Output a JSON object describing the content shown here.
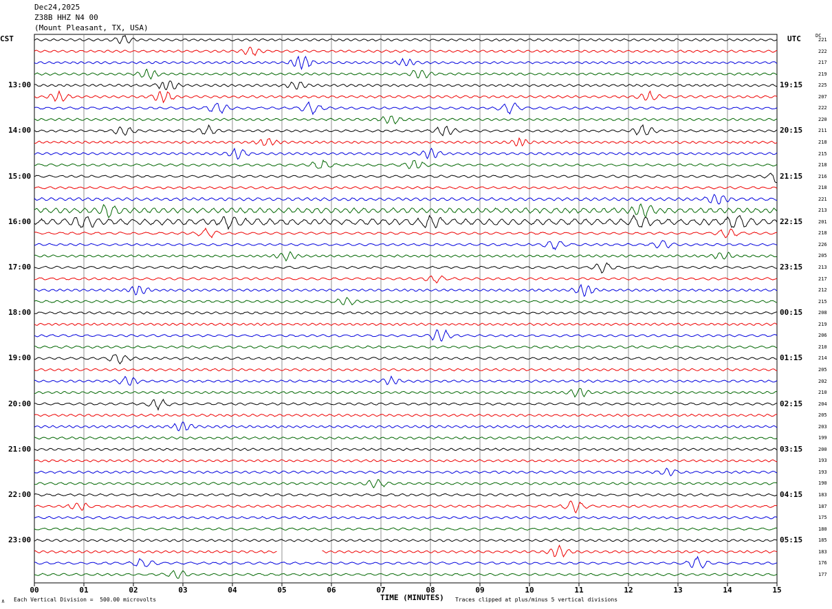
{
  "header": {
    "date": "Dec24,2025",
    "station": "Z38B HHZ N4 00",
    "location": "(Mount Pleasant, TX, USA)"
  },
  "left_tz": "CST",
  "right_tz": "UTC",
  "dc_label": "DC",
  "footer": {
    "scale_note": "Each Vertical Division =  500.00 microvolts",
    "clip_note": "Traces clipped at plus/minus 5 vertical divisions",
    "corner_mark": "∧"
  },
  "colors": [
    "#000000",
    "#ee0000",
    "#0000dd",
    "#006600"
  ],
  "chart_data": {
    "type": "line",
    "title": "",
    "xlabel": "TIME (MINUTES)",
    "xlim": [
      0,
      15
    ],
    "x_ticks": [
      "00",
      "01",
      "02",
      "03",
      "04",
      "05",
      "06",
      "07",
      "08",
      "09",
      "10",
      "11",
      "12",
      "13",
      "14",
      "15"
    ],
    "left_time_labels": [
      "13:00",
      "14:00",
      "15:00",
      "16:00",
      "17:00",
      "18:00",
      "19:00",
      "20:00",
      "21:00",
      "22:00",
      "23:00"
    ],
    "right_time_labels": [
      "19:15",
      "20:15",
      "21:15",
      "22:15",
      "23:15",
      "00:15",
      "01:15",
      "02:15",
      "03:15",
      "04:15",
      "05:15"
    ],
    "dc_offsets": [
      221,
      222,
      217,
      219,
      225,
      207,
      222,
      220,
      211,
      218,
      215,
      218,
      216,
      218,
      221,
      213,
      201,
      218,
      226,
      205,
      213,
      217,
      212,
      215,
      208,
      219,
      206,
      210,
      214,
      205,
      202,
      210,
      204,
      205,
      203,
      199,
      200,
      193,
      193,
      190,
      183,
      187,
      175,
      180,
      185,
      183,
      176,
      177
    ],
    "events": [
      {
        "trace": 0,
        "minute": 1.8,
        "amp": 1.8
      },
      {
        "trace": 1,
        "minute": 4.4,
        "amp": 1.6
      },
      {
        "trace": 2,
        "minute": 5.4,
        "amp": 3.5
      },
      {
        "trace": 2,
        "minute": 7.5,
        "amp": 1.5
      },
      {
        "trace": 3,
        "minute": 2.3,
        "amp": 2.0
      },
      {
        "trace": 3,
        "minute": 7.8,
        "amp": 2.2
      },
      {
        "trace": 4,
        "minute": 2.7,
        "amp": 2.4
      },
      {
        "trace": 4,
        "minute": 5.3,
        "amp": 2.0
      },
      {
        "trace": 5,
        "minute": 0.5,
        "amp": 2.0
      },
      {
        "trace": 5,
        "minute": 2.6,
        "amp": 2.6
      },
      {
        "trace": 5,
        "minute": 12.4,
        "amp": 2.2
      },
      {
        "trace": 6,
        "minute": 3.7,
        "amp": 2.6
      },
      {
        "trace": 6,
        "minute": 5.6,
        "amp": 2.6
      },
      {
        "trace": 6,
        "minute": 9.6,
        "amp": 2.6
      },
      {
        "trace": 7,
        "minute": 7.2,
        "amp": 1.8
      },
      {
        "trace": 8,
        "minute": 1.8,
        "amp": 2.0
      },
      {
        "trace": 8,
        "minute": 3.5,
        "amp": 2.0
      },
      {
        "trace": 8,
        "minute": 8.3,
        "amp": 2.2
      },
      {
        "trace": 8,
        "minute": 12.3,
        "amp": 2.4
      },
      {
        "trace": 9,
        "minute": 4.7,
        "amp": 1.6
      },
      {
        "trace": 9,
        "minute": 9.8,
        "amp": 1.4
      },
      {
        "trace": 10,
        "minute": 4.1,
        "amp": 2.2
      },
      {
        "trace": 10,
        "minute": 8.0,
        "amp": 2.0
      },
      {
        "trace": 11,
        "minute": 5.8,
        "amp": 2.0
      },
      {
        "trace": 11,
        "minute": 7.7,
        "amp": 2.0
      },
      {
        "trace": 12,
        "minute": 15.0,
        "amp": 2.5
      },
      {
        "trace": 14,
        "minute": 13.8,
        "amp": 2.6
      },
      {
        "trace": 15,
        "minute": 1.5,
        "amp": 2.4
      },
      {
        "trace": 15,
        "minute": 12.3,
        "amp": 3.0
      },
      {
        "trace": 16,
        "minute": 1.0,
        "amp": 2.6
      },
      {
        "trace": 16,
        "minute": 4.0,
        "amp": 2.6
      },
      {
        "trace": 16,
        "minute": 8.0,
        "amp": 2.6
      },
      {
        "trace": 16,
        "minute": 12.2,
        "amp": 3.0
      },
      {
        "trace": 16,
        "minute": 14.2,
        "amp": 2.8
      },
      {
        "trace": 17,
        "minute": 3.5,
        "amp": 1.8
      },
      {
        "trace": 17,
        "minute": 14.0,
        "amp": 2.0
      },
      {
        "trace": 18,
        "minute": 10.5,
        "amp": 2.0
      },
      {
        "trace": 18,
        "minute": 12.7,
        "amp": 2.2
      },
      {
        "trace": 19,
        "minute": 5.1,
        "amp": 1.8
      },
      {
        "trace": 19,
        "minute": 13.9,
        "amp": 1.8
      },
      {
        "trace": 20,
        "minute": 11.5,
        "amp": 2.0
      },
      {
        "trace": 21,
        "minute": 8.1,
        "amp": 1.4
      },
      {
        "trace": 22,
        "minute": 2.1,
        "amp": 2.2
      },
      {
        "trace": 22,
        "minute": 11.1,
        "amp": 2.6
      },
      {
        "trace": 23,
        "minute": 6.3,
        "amp": 1.6
      },
      {
        "trace": 26,
        "minute": 8.2,
        "amp": 3.0
      },
      {
        "trace": 28,
        "minute": 1.7,
        "amp": 2.4
      },
      {
        "trace": 30,
        "minute": 1.9,
        "amp": 2.0
      },
      {
        "trace": 30,
        "minute": 7.2,
        "amp": 1.6
      },
      {
        "trace": 31,
        "minute": 11.0,
        "amp": 1.8
      },
      {
        "trace": 32,
        "minute": 2.5,
        "amp": 2.0
      },
      {
        "trace": 34,
        "minute": 3.0,
        "amp": 2.0
      },
      {
        "trace": 38,
        "minute": 12.8,
        "amp": 1.6
      },
      {
        "trace": 39,
        "minute": 6.9,
        "amp": 2.0
      },
      {
        "trace": 41,
        "minute": 0.9,
        "amp": 1.8
      },
      {
        "trace": 41,
        "minute": 10.9,
        "amp": 2.4
      },
      {
        "trace": 45,
        "minute": 10.6,
        "amp": 2.4
      },
      {
        "trace": 46,
        "minute": 2.2,
        "amp": 2.0
      },
      {
        "trace": 46,
        "minute": 13.4,
        "amp": 2.4
      },
      {
        "trace": 47,
        "minute": 2.9,
        "amp": 1.8
      }
    ],
    "gaps": [
      {
        "trace": 45,
        "start_minute": 4.9,
        "end_minute": 5.8
      }
    ],
    "noisy_traces": [
      {
        "trace": 15,
        "level": 2.2
      },
      {
        "trace": 16,
        "level": 2.6
      },
      {
        "trace": 14,
        "level": 1.3
      }
    ]
  }
}
